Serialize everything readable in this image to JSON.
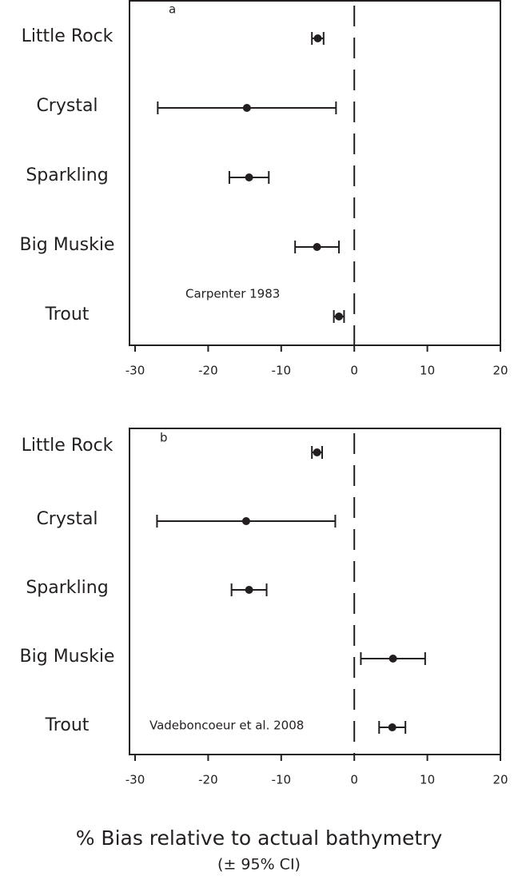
{
  "chart_data": [
    {
      "type": "dot",
      "label": "a",
      "annotation": "Carpenter 1983",
      "categories": [
        "Little Rock",
        "Crystal",
        "Sparkling",
        "Big Muskie",
        "Trout"
      ],
      "values": [
        -5.0,
        -14.7,
        -14.4,
        -5.1,
        -2.1
      ],
      "errors": [
        0.8,
        12.2,
        2.7,
        3.0,
        0.7
      ],
      "xlim": [
        -30,
        20
      ],
      "xticks": [
        -30,
        -20,
        -10,
        0,
        10,
        20
      ],
      "reference_line": 0,
      "color": "#231f20"
    },
    {
      "type": "dot",
      "label": "b",
      "annotation": "Vadeboncoeur et al. 2008",
      "categories": [
        "Little Rock",
        "Crystal",
        "Sparkling",
        "Big Muskie",
        "Trout"
      ],
      "values": [
        -5.1,
        -14.8,
        -14.4,
        5.3,
        5.2
      ],
      "errors": [
        0.7,
        12.2,
        2.4,
        4.4,
        1.8
      ],
      "xlim": [
        -30,
        20
      ],
      "xticks": [
        -30,
        -20,
        -10,
        0,
        10,
        20
      ],
      "reference_line": 0,
      "color": "#231f20"
    }
  ],
  "xlabel": "% Bias relative to actual bathymetry",
  "xlabel_sub": "(± 95% CI)"
}
